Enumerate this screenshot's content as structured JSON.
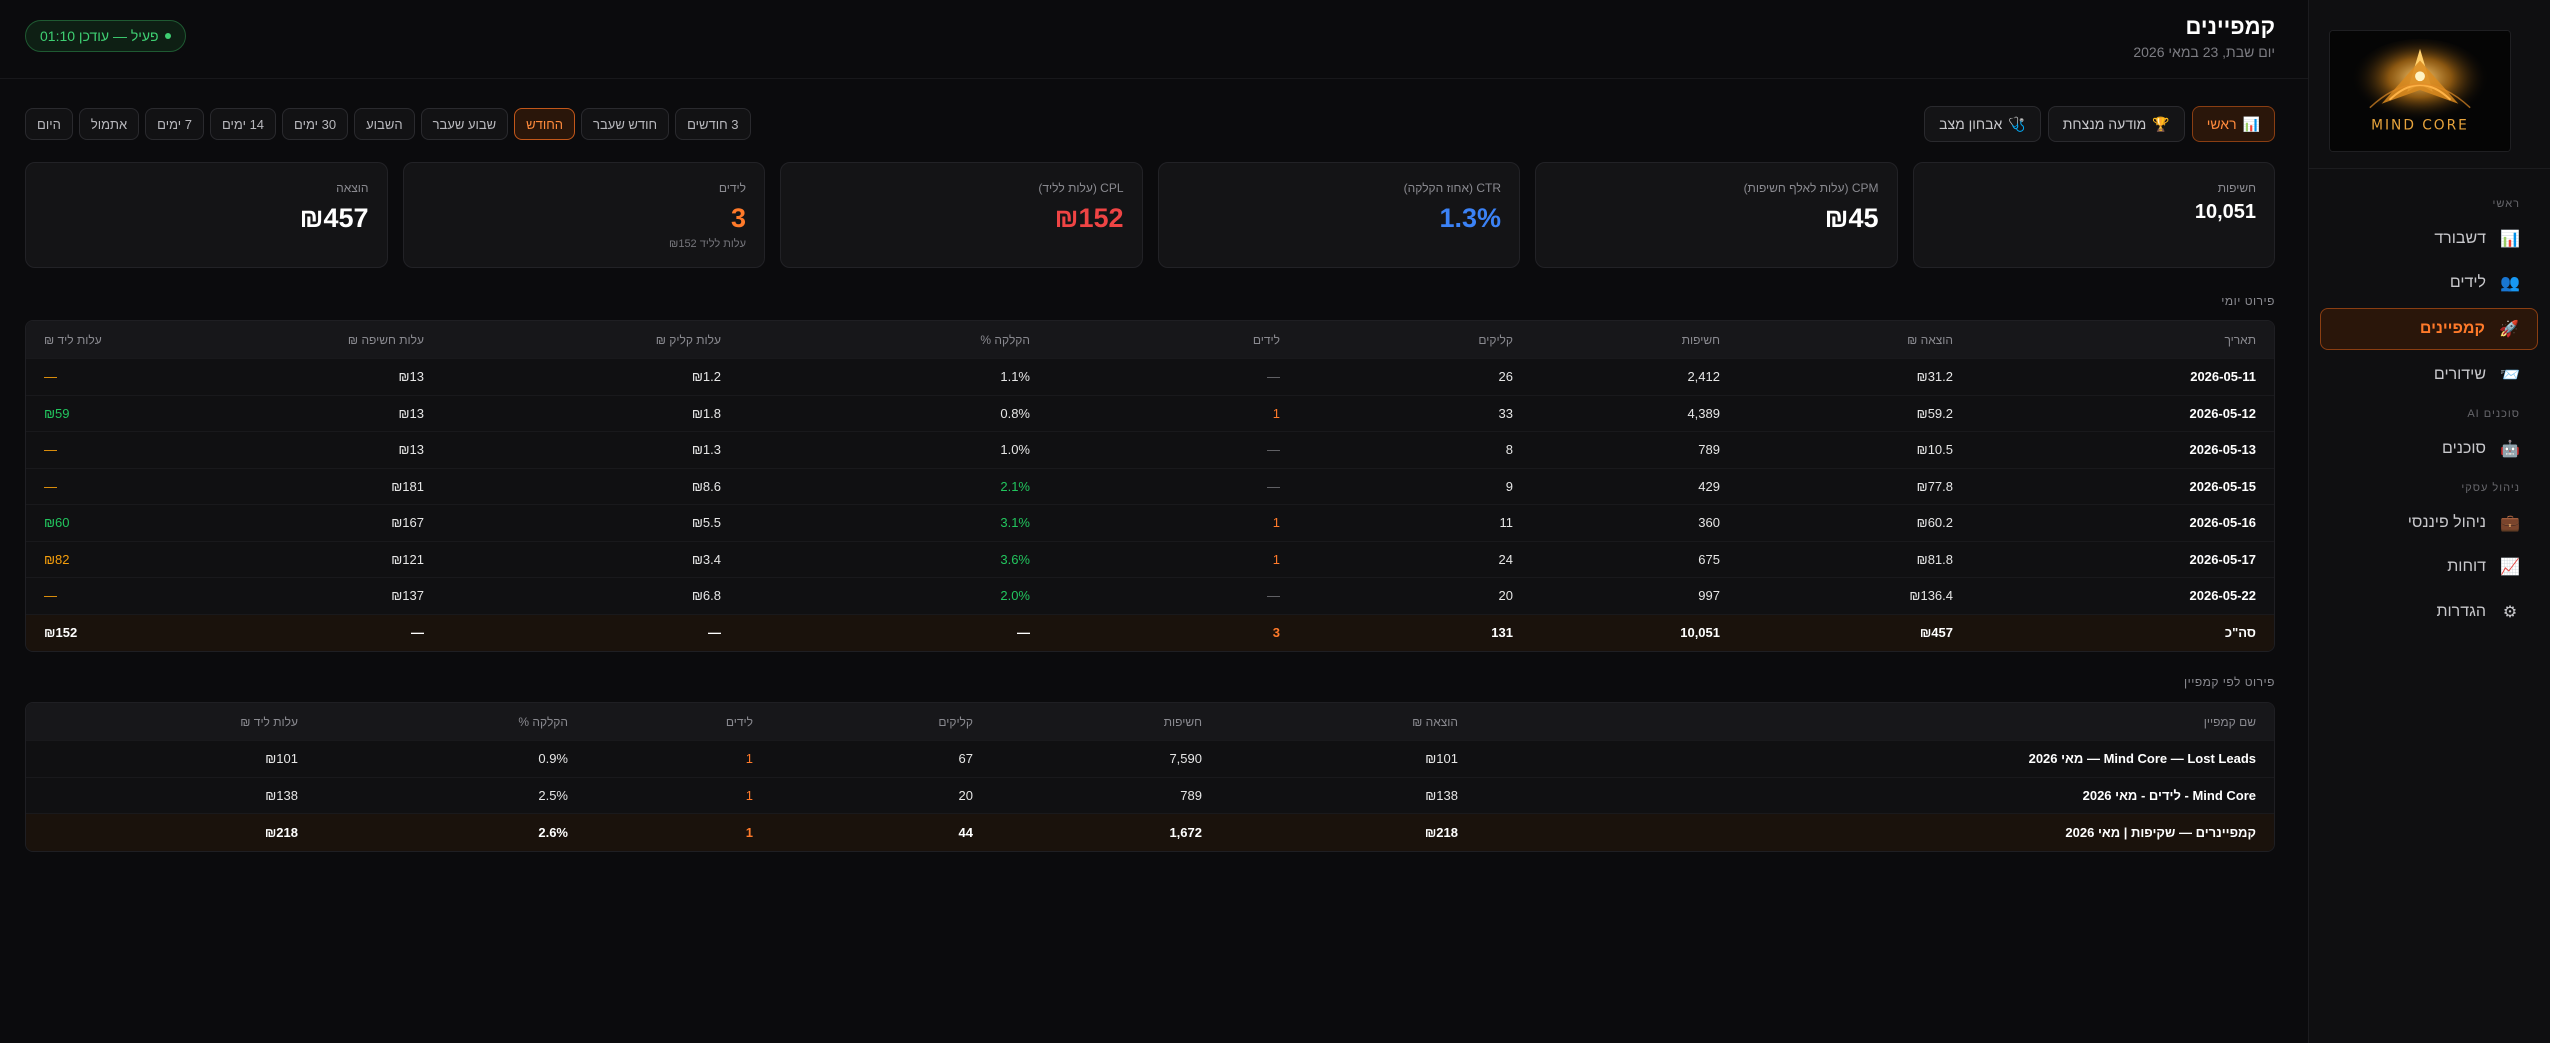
{
  "sidebar": {
    "logo_text": "MIND CORE",
    "sections": {
      "main": "ראשי",
      "ai": "סוכנים AI",
      "business": "ניהול עסקי"
    },
    "items": [
      {
        "label": "דשבורד",
        "icon": "📊"
      },
      {
        "label": "לידים",
        "icon": "👥"
      },
      {
        "label": "קמפיינים",
        "icon": "🚀"
      },
      {
        "label": "שידורים",
        "icon": "📨"
      },
      {
        "label": "סוכנים",
        "icon": "🤖"
      },
      {
        "label": "ניהול פיננסי",
        "icon": "💼"
      },
      {
        "label": "דוחות",
        "icon": "📈"
      },
      {
        "label": "הגדרות",
        "icon": "⚙"
      }
    ]
  },
  "header": {
    "title": "קמפיינים",
    "date": "יום שבת, 23 במאי 2026",
    "status": "פעיל — עודכן 01:10"
  },
  "tabs": [
    {
      "label": "ראשי",
      "icon": "📊"
    },
    {
      "label": "מודעה מנצחת",
      "icon": "🏆"
    },
    {
      "label": "אבחון מצב",
      "icon": "🩺"
    }
  ],
  "filters": [
    "היום",
    "אתמול",
    "7 ימים",
    "14 ימים",
    "30 ימים",
    "השבוע",
    "שבוע שעבר",
    "החודש",
    "חודש שעבר",
    "3 חודשים"
  ],
  "kpis": [
    {
      "label": "הוצאה",
      "value": "₪457",
      "sub": ""
    },
    {
      "label": "לידים",
      "value": "3",
      "sub": "עלות לליד ₪152"
    },
    {
      "label": "CPL (עלות לליד)",
      "value": "₪152",
      "sub": ""
    },
    {
      "label": "CTR (אחוז הקלקה)",
      "value": "1.3%",
      "sub": ""
    },
    {
      "label": "CPM (עלות לאלף חשיפות)",
      "value": "₪45",
      "sub": ""
    },
    {
      "label": "חשיפות",
      "value": "10,051",
      "sub": ""
    }
  ],
  "daily": {
    "title": "פירוט יומי",
    "headers": [
      "תאריך",
      "הוצאה ₪",
      "חשיפות",
      "קליקים",
      "לידים",
      "הקלקה %",
      "עלות קליק ₪",
      "עלות חשיפה ₪",
      "עלות ליד ₪"
    ],
    "rows": [
      [
        "2026-05-11",
        "₪31.2",
        "2,412",
        "26",
        "—",
        "1.1%",
        "₪1.2",
        "₪13",
        "—"
      ],
      [
        "2026-05-12",
        "₪59.2",
        "4,389",
        "33",
        "1",
        "0.8%",
        "₪1.8",
        "₪13",
        "₪59"
      ],
      [
        "2026-05-13",
        "₪10.5",
        "789",
        "8",
        "—",
        "1.0%",
        "₪1.3",
        "₪13",
        "—"
      ],
      [
        "2026-05-15",
        "₪77.8",
        "429",
        "9",
        "—",
        "2.1%",
        "₪8.6",
        "₪181",
        "—"
      ],
      [
        "2026-05-16",
        "₪60.2",
        "360",
        "11",
        "1",
        "3.1%",
        "₪5.5",
        "₪167",
        "₪60"
      ],
      [
        "2026-05-17",
        "₪81.8",
        "675",
        "24",
        "1",
        "3.6%",
        "₪3.4",
        "₪121",
        "₪82"
      ],
      [
        "2026-05-22",
        "₪136.4",
        "997",
        "20",
        "—",
        "2.0%",
        "₪6.8",
        "₪137",
        "—"
      ]
    ],
    "total": [
      "סה\"כ",
      "₪457",
      "10,051",
      "131",
      "3",
      "—",
      "—",
      "—",
      "₪152"
    ]
  },
  "campaigns": {
    "title": "פירוט לפי קמפיין",
    "headers": [
      "שם קמפיין",
      "הוצאה ₪",
      "חשיפות",
      "קליקים",
      "לידים",
      "הקלקה %",
      "עלות ליד ₪"
    ],
    "rows": [
      [
        "Mind Core — Lost Leads — מאי 2026",
        "₪101",
        "7,590",
        "67",
        "1",
        "0.9%",
        "₪101"
      ],
      [
        "Mind Core - לידים - מאי 2026",
        "₪138",
        "789",
        "20",
        "1",
        "2.5%",
        "₪138"
      ]
    ],
    "total": [
      "קמפיינרים — שקיפות | מאי 2026",
      "₪218",
      "1,672",
      "44",
      "1",
      "2.6%",
      "₪218"
    ]
  },
  "colors": {
    "accent": "#ff7a2a",
    "positive": "#22c55e",
    "warning": "#f59e0b",
    "danger": "#ef4444",
    "info": "#3b82f6"
  }
}
